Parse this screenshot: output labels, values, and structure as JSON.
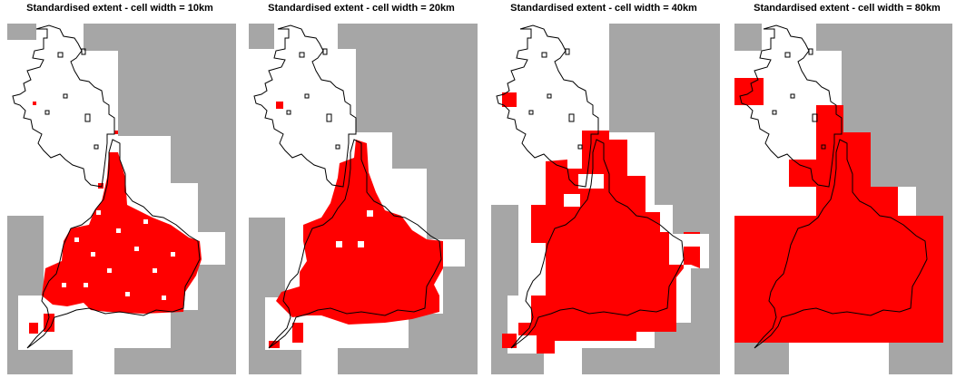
{
  "panels": [
    {
      "title": "Standardised extent - cell width = 10km"
    },
    {
      "title": "Standardised extent - cell width = 20km"
    },
    {
      "title": "Standardised extent - cell width = 40km"
    },
    {
      "title": "Standardised extent - cell width = 80km"
    }
  ],
  "colors": {
    "outside_extent": "#a6a6a6",
    "background_cell": "#ffffff",
    "presence_cell": "#ff0000",
    "coastline": "#000000"
  }
}
